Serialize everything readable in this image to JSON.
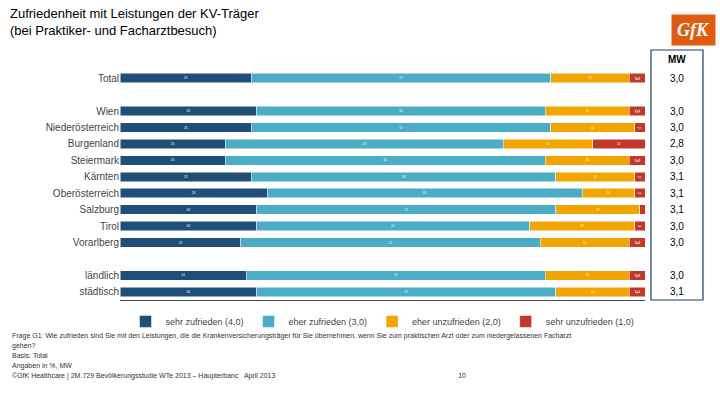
{
  "chart_data": {
    "type": "bar",
    "orientation": "horizontal",
    "stacked": true,
    "title": "Zufriedenheit mit Leistungen der KV-Träger",
    "subtitle": "(bei Praktiker- und Facharztbesuch)",
    "categories": [
      "Total",
      null,
      "Wien",
      "Niederösterreich",
      "Burgenland",
      "Steiermark",
      "Kärnten",
      "Oberösterreich",
      "Salzburg",
      "Tirol",
      "Vorarlberg",
      null,
      "ländlich",
      "städtisch"
    ],
    "series": [
      {
        "name": "sehr zufrieden (4,0)",
        "color": "#1f4e79",
        "values": [
          25,
          0,
          26,
          25,
          20,
          20,
          25,
          28,
          26,
          26,
          23,
          0,
          24,
          26
        ],
        "value_labels": [
          "25",
          null,
          "26",
          "25",
          "20",
          "20",
          "25",
          "28",
          "26",
          "26",
          "23",
          null,
          "24",
          "26"
        ]
      },
      {
        "name": "eher zufrieden (3,0)",
        "color": "#4bacc6",
        "values": [
          57,
          0,
          55,
          57,
          53,
          61,
          58,
          60,
          57,
          52,
          57,
          0,
          57,
          57
        ],
        "value_labels": [
          "57",
          null,
          "55",
          "57",
          "53",
          "61",
          "58",
          "60",
          "57",
          "52",
          "57",
          null,
          "57",
          "57"
        ]
      },
      {
        "name": "eher unzufrieden (2,0)",
        "color": "#f0a500",
        "values": [
          15,
          0,
          16,
          16,
          17,
          16,
          15,
          10,
          16,
          20,
          17,
          0,
          16,
          14
        ],
        "value_labels": [
          "15",
          null,
          "16",
          "16",
          "17",
          "16",
          "15",
          "10",
          "16",
          "20",
          "17",
          null,
          "16",
          "14"
        ]
      },
      {
        "name": "sehr unzufrieden (1,0)",
        "color": "#c0392b",
        "values": [
          3,
          0,
          3,
          2,
          10,
          3,
          2,
          2,
          1,
          2,
          3,
          0,
          3,
          3
        ],
        "value_labels": [
          "3",
          null,
          "3",
          "2",
          "10",
          "3",
          "2",
          "2",
          null,
          "2",
          "3",
          null,
          "3",
          "3"
        ]
      }
    ],
    "xlim": [
      0,
      100
    ],
    "tick_labels": "y",
    "data_labels": true,
    "grid": false,
    "legend": "bottom",
    "annotations": [
      {
        "text": "MW",
        "position": "column_header"
      },
      {
        "text": "3,0",
        "y": 0
      },
      {
        "text": "3,0",
        "y": 2
      },
      {
        "text": "3,0",
        "y": 3
      },
      {
        "text": "2,8",
        "y": 4
      },
      {
        "text": "3,0",
        "y": 5
      },
      {
        "text": "3,1",
        "y": 6
      },
      {
        "text": "3,1",
        "y": 7
      },
      {
        "text": "3,1",
        "y": 8
      },
      {
        "text": "3,0",
        "y": 9
      },
      {
        "text": "3,0",
        "y": 10
      },
      {
        "text": "3,0",
        "y": 12
      },
      {
        "text": "3,1",
        "y": 13
      },
      {
        "text": "Frage G1: Wie zufrieden sind Sie mit den Leistungen, die die Krankenversicherungsträger für Sie übernehmen, wenn Sie zum praktischen Arzt oder zum niedergelassenen Facharzt",
        "position": "footnote"
      },
      {
        "text": "gehen?",
        "position": "footnote"
      },
      {
        "text": "Basis: Total",
        "position": "footnote"
      },
      {
        "text": "Angaben in %, MW",
        "position": "footnote"
      },
      {
        "text": "©GfK Healthcare | 2M.729 Bevölkerungsstudie WTe 2013 – Haupterbanc   April 2013                                                                                              10",
        "position": "footnote"
      },
      {
        "text": "GfK",
        "position": "logo"
      }
    ]
  }
}
